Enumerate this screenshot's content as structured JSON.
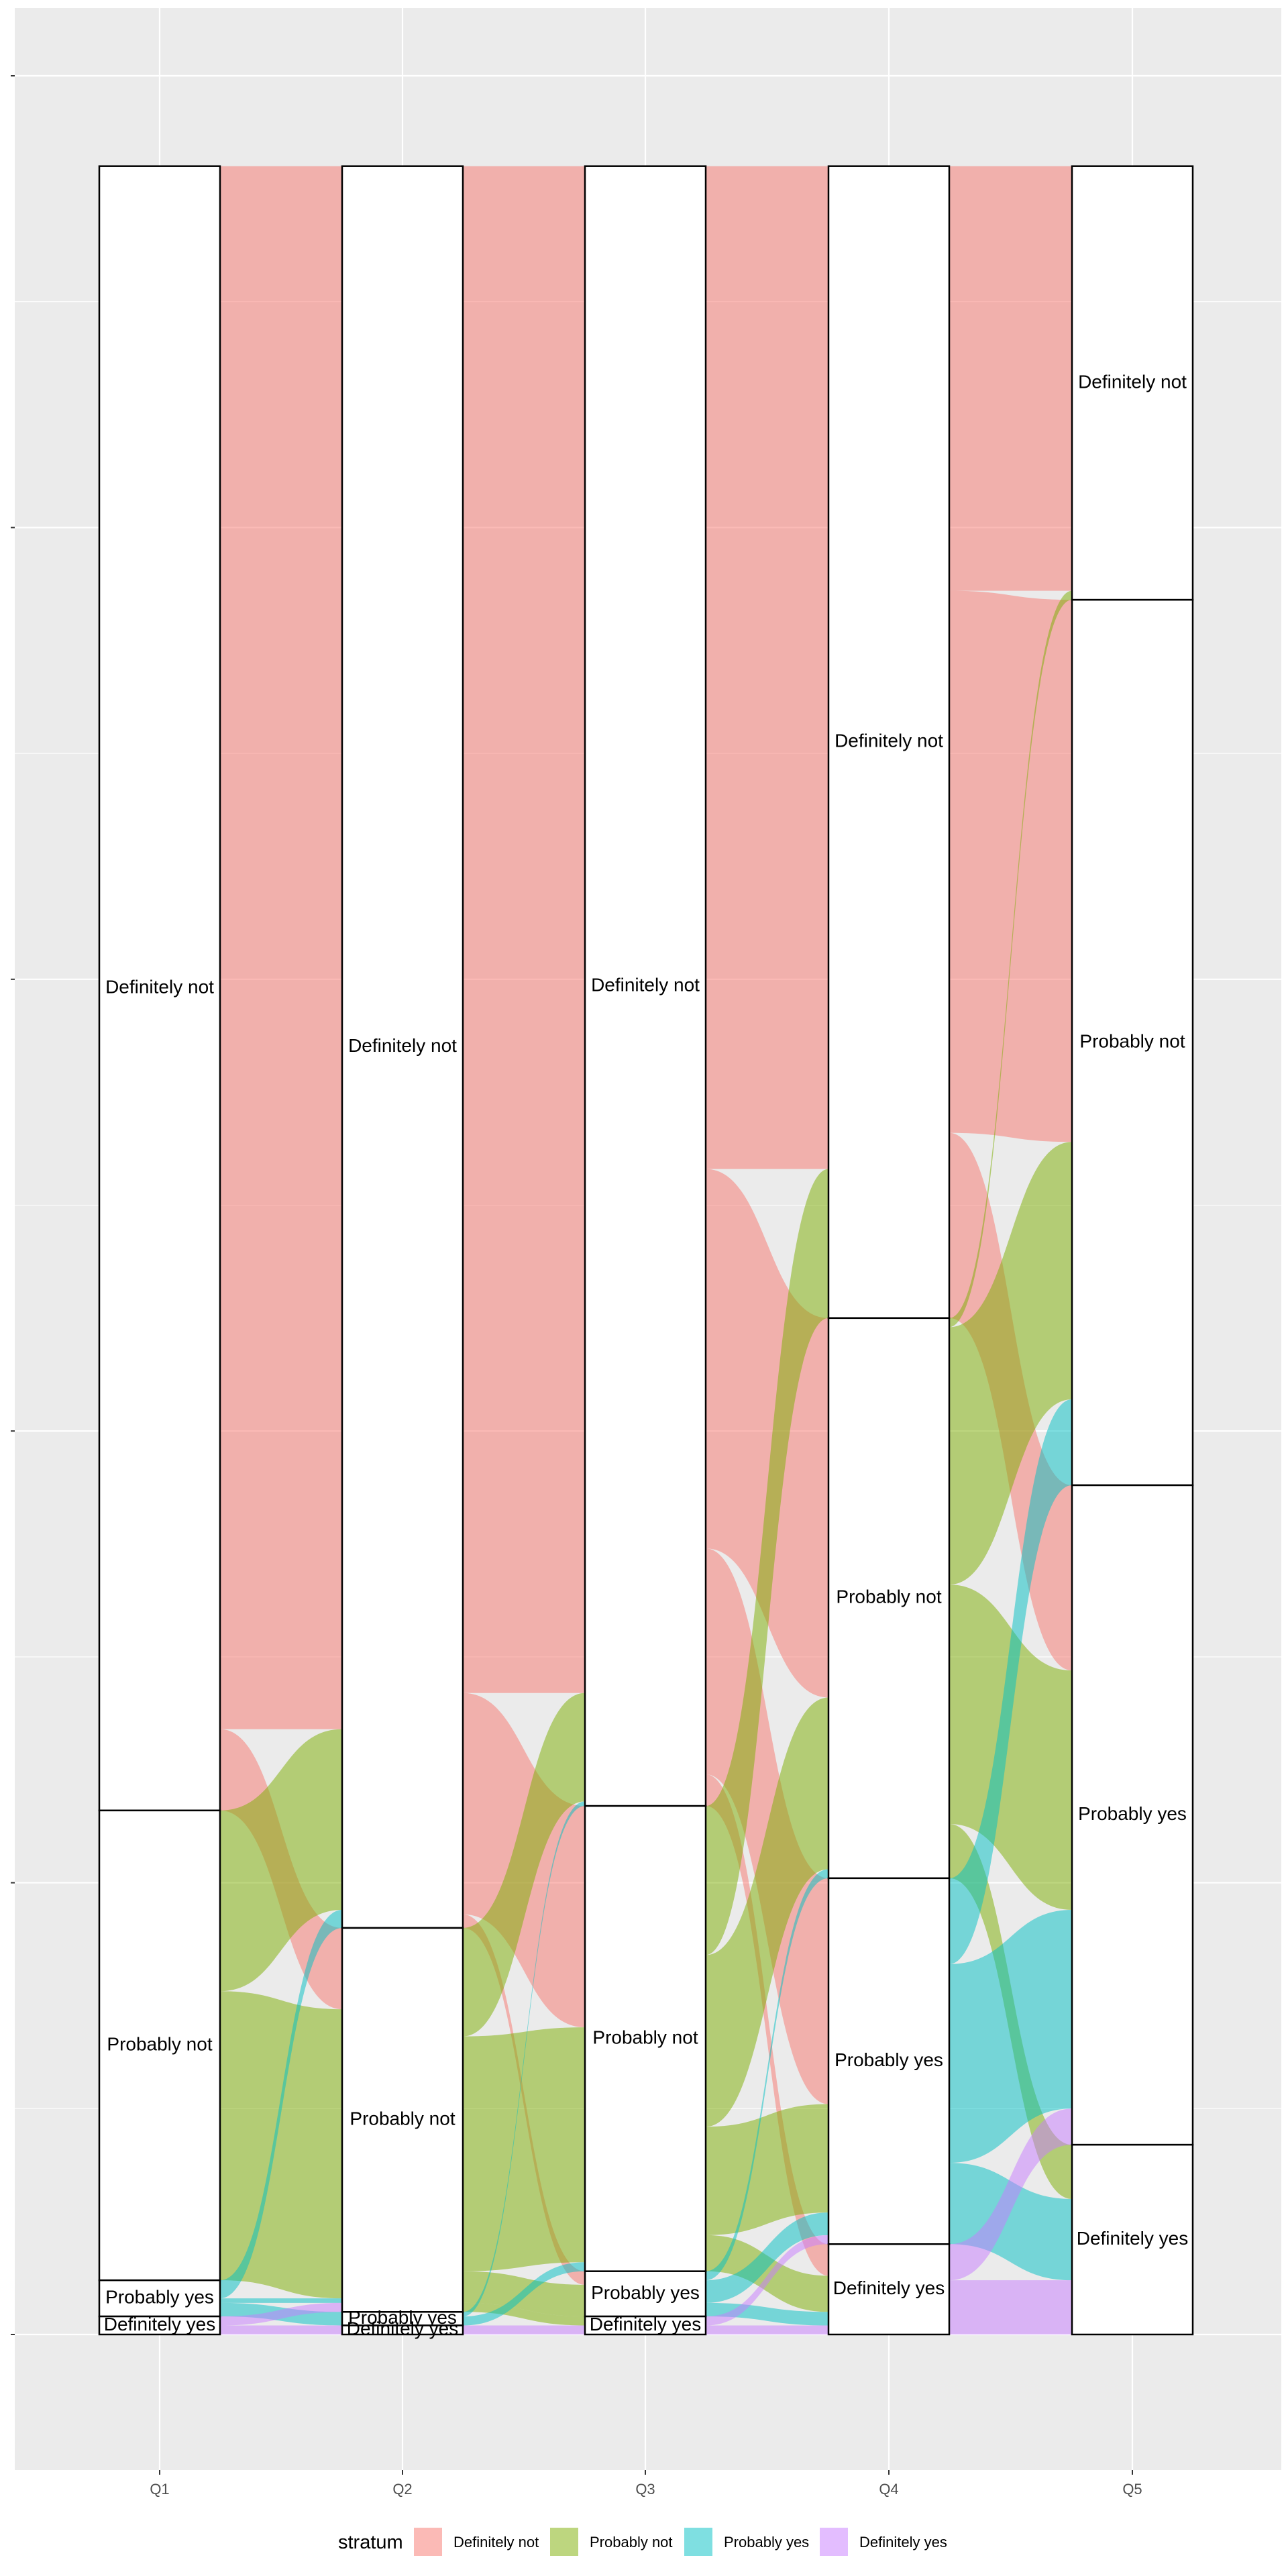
{
  "chart_data": {
    "type": "alluvial",
    "x": [
      "Q1",
      "Q2",
      "Q3",
      "Q4",
      "Q5"
    ],
    "strata_order": [
      "Definitely not",
      "Probably not",
      "Probably yes",
      "Definitely yes"
    ],
    "legend": {
      "title": "stratum",
      "position": "bottom",
      "entries": [
        {
          "label": "Definitely not",
          "color": "#F8766D"
        },
        {
          "label": "Probably not",
          "color": "#7CAE00"
        },
        {
          "label": "Probably yes",
          "color": "#00BFC4"
        },
        {
          "label": "Definitely yes",
          "color": "#C77CFF"
        }
      ]
    },
    "strata": [
      {
        "axis": "Q1",
        "counts": {
          "Definitely not": 364,
          "Probably not": 104,
          "Probably yes": 8,
          "Definitely yes": 4
        }
      },
      {
        "axis": "Q2",
        "counts": {
          "Definitely not": 390,
          "Probably not": 85,
          "Probably yes": 3,
          "Definitely yes": 2
        }
      },
      {
        "axis": "Q3",
        "counts": {
          "Definitely not": 363,
          "Probably not": 103,
          "Probably yes": 10,
          "Definitely yes": 4
        }
      },
      {
        "axis": "Q4",
        "counts": {
          "Definitely not": 255,
          "Probably not": 124,
          "Probably yes": 81,
          "Definitely yes": 20
        }
      },
      {
        "axis": "Q5",
        "counts": {
          "Definitely not": 96,
          "Probably not": 196,
          "Probably yes": 146,
          "Definitely yes": 42
        }
      }
    ],
    "flows": [
      {
        "from_axis": "Q1",
        "to_axis": "Q2",
        "links": [
          {
            "source": "Definitely not",
            "target": "Definitely not",
            "value": 346
          },
          {
            "source": "Definitely not",
            "target": "Probably not",
            "value": 18
          },
          {
            "source": "Probably not",
            "target": "Definitely not",
            "value": 40
          },
          {
            "source": "Probably not",
            "target": "Probably not",
            "value": 64
          },
          {
            "source": "Probably yes",
            "target": "Definitely not",
            "value": 4
          },
          {
            "source": "Probably yes",
            "target": "Probably not",
            "value": 1
          },
          {
            "source": "Probably yes",
            "target": "Probably yes",
            "value": 3
          },
          {
            "source": "Definitely yes",
            "target": "Probably not",
            "value": 2
          },
          {
            "source": "Definitely yes",
            "target": "Definitely yes",
            "value": 2
          }
        ]
      },
      {
        "from_axis": "Q2",
        "to_axis": "Q3",
        "links": [
          {
            "source": "Definitely not",
            "target": "Definitely not",
            "value": 338
          },
          {
            "source": "Definitely not",
            "target": "Probably not",
            "value": 49
          },
          {
            "source": "Definitely not",
            "target": "Probably yes",
            "value": 3
          },
          {
            "source": "Probably not",
            "target": "Definitely not",
            "value": 24
          },
          {
            "source": "Probably not",
            "target": "Probably not",
            "value": 52
          },
          {
            "source": "Probably not",
            "target": "Probably yes",
            "value": 7
          },
          {
            "source": "Probably not",
            "target": "Definitely yes",
            "value": 2
          },
          {
            "source": "Probably yes",
            "target": "Definitely not",
            "value": 1
          },
          {
            "source": "Probably yes",
            "target": "Probably not",
            "value": 2
          },
          {
            "source": "Definitely yes",
            "target": "Definitely yes",
            "value": 2
          }
        ]
      },
      {
        "from_axis": "Q3",
        "to_axis": "Q4",
        "links": [
          {
            "source": "Definitely not",
            "target": "Definitely not",
            "value": 222
          },
          {
            "source": "Definitely not",
            "target": "Probably not",
            "value": 84
          },
          {
            "source": "Definitely not",
            "target": "Probably yes",
            "value": 50
          },
          {
            "source": "Definitely not",
            "target": "Definitely yes",
            "value": 7
          },
          {
            "source": "Probably not",
            "target": "Definitely not",
            "value": 33
          },
          {
            "source": "Probably not",
            "target": "Probably not",
            "value": 38
          },
          {
            "source": "Probably not",
            "target": "Probably yes",
            "value": 24
          },
          {
            "source": "Probably not",
            "target": "Definitely yes",
            "value": 8
          },
          {
            "source": "Probably yes",
            "target": "Probably not",
            "value": 2
          },
          {
            "source": "Probably yes",
            "target": "Probably yes",
            "value": 5
          },
          {
            "source": "Probably yes",
            "target": "Definitely yes",
            "value": 3
          },
          {
            "source": "Definitely yes",
            "target": "Probably yes",
            "value": 2
          },
          {
            "source": "Definitely yes",
            "target": "Definitely yes",
            "value": 2
          }
        ]
      },
      {
        "from_axis": "Q4",
        "to_axis": "Q5",
        "links": [
          {
            "source": "Definitely not",
            "target": "Definitely not",
            "value": 94
          },
          {
            "source": "Definitely not",
            "target": "Probably not",
            "value": 120
          },
          {
            "source": "Definitely not",
            "target": "Probably yes",
            "value": 41
          },
          {
            "source": "Probably not",
            "target": "Definitely not",
            "value": 2
          },
          {
            "source": "Probably not",
            "target": "Probably not",
            "value": 57
          },
          {
            "source": "Probably not",
            "target": "Probably yes",
            "value": 53
          },
          {
            "source": "Probably not",
            "target": "Definitely yes",
            "value": 12
          },
          {
            "source": "Probably yes",
            "target": "Probably not",
            "value": 19
          },
          {
            "source": "Probably yes",
            "target": "Probably yes",
            "value": 44
          },
          {
            "source": "Probably yes",
            "target": "Definitely yes",
            "value": 18
          },
          {
            "source": "Definitely yes",
            "target": "Probably yes",
            "value": 8
          },
          {
            "source": "Definitely yes",
            "target": "Definitely yes",
            "value": 12
          }
        ]
      }
    ],
    "ylim": [
      -30,
      515
    ],
    "grid": true,
    "xlabel": "",
    "ylabel": ""
  }
}
